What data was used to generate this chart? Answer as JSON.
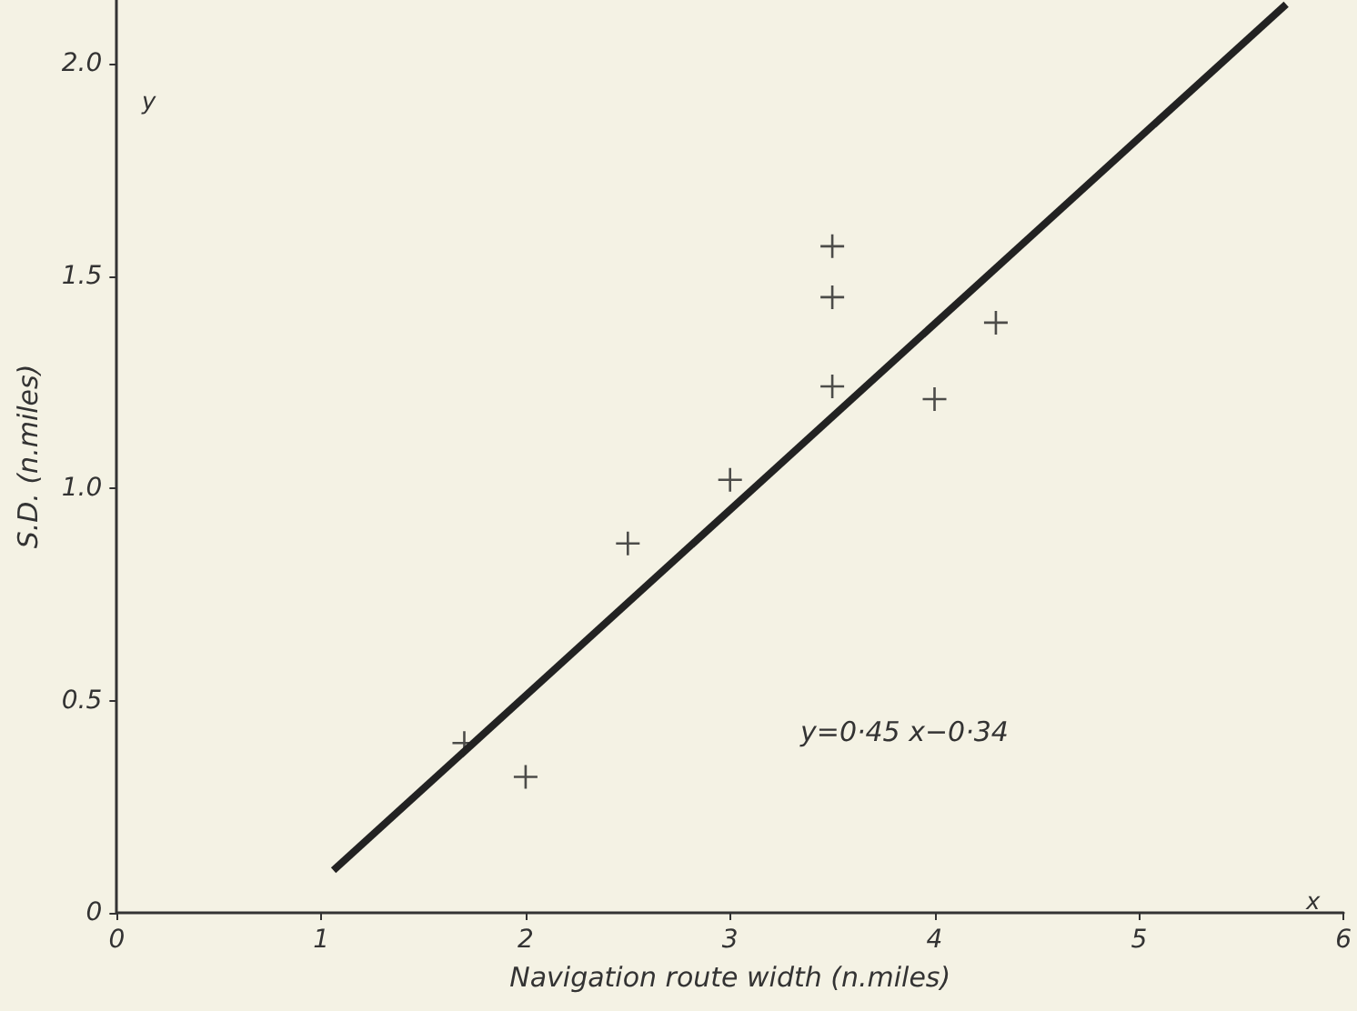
{
  "chart_data": {
    "type": "scatter",
    "xlabel": "Navigation route width (n.miles)",
    "ylabel": "S.D. (n.miles)",
    "xlim": [
      0,
      6
    ],
    "ylim": [
      0,
      2.15
    ],
    "xticks": [
      0,
      1,
      2,
      3,
      4,
      5,
      6
    ],
    "yticks": [
      0,
      0.5,
      {
        "value": 1,
        "label": "1.0"
      },
      1.5,
      {
        "value": 2,
        "label": "2.0"
      }
    ],
    "grid": false,
    "marker": "cross",
    "series": [
      {
        "color": "#222222",
        "x": [
          1.7,
          2,
          2.5,
          3,
          3.5,
          3.5,
          3.5,
          4,
          4.3
        ],
        "values": [
          0.4,
          0.32,
          0.87,
          1.02,
          1.24,
          1.45,
          1.57,
          1.21,
          1.39
        ]
      },
      {
        "type": "line",
        "color": "#222222",
        "marker": "none",
        "x": [
          1.06,
          5.72
        ],
        "values": [
          0.1,
          2.14
        ]
      }
    ],
    "annotations": [
      "y=0·45 x−0·34",
      "x",
      "y"
    ]
  }
}
